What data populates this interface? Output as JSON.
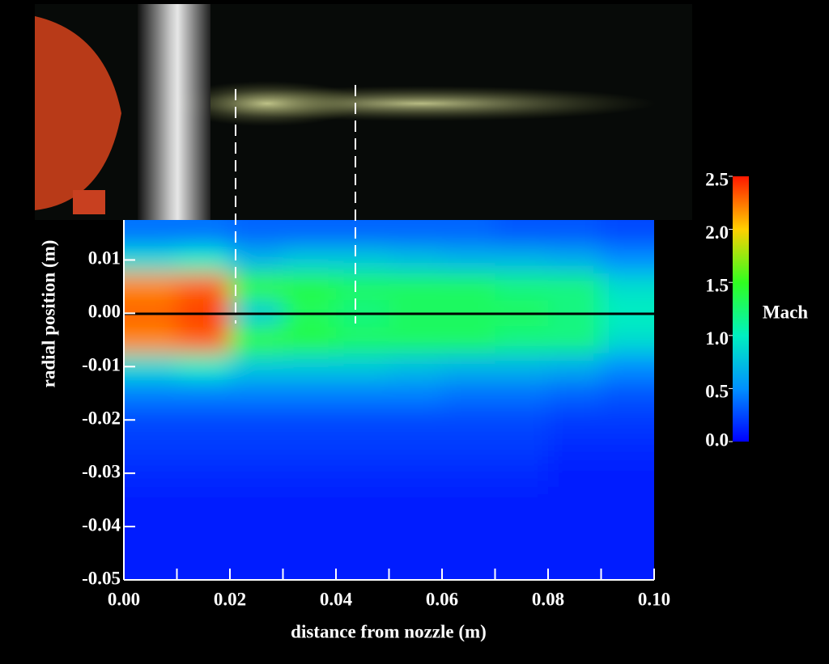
{
  "chart_data": {
    "type": "heatmap",
    "xlabel": "distance from nozzle (m)",
    "ylabel": "radial position (m)",
    "colorbar_label": "Mach",
    "x": [
      0.005,
      0.015,
      0.025,
      0.035,
      0.045,
      0.055,
      0.065,
      0.075,
      0.085,
      0.095
    ],
    "y": [
      0.015,
      0.01,
      0.005,
      0,
      -0.005,
      -0.01,
      -0.015,
      -0.02,
      -0.025,
      -0.03,
      -0.035,
      -0.04,
      -0.045
    ],
    "z": [
      [
        0.4,
        0.4,
        0.35,
        0.35,
        0.35,
        0.35,
        0.35,
        0.3,
        0.3,
        0.25
      ],
      [
        0.9,
        1.0,
        0.7,
        0.8,
        0.8,
        0.75,
        0.7,
        0.7,
        0.65,
        0.5
      ],
      [
        2.2,
        2.3,
        1.5,
        1.4,
        1.3,
        1.3,
        1.3,
        1.2,
        1.2,
        0.9
      ],
      [
        2.3,
        2.4,
        0.8,
        1.3,
        1.2,
        1.3,
        1.3,
        1.3,
        1.2,
        1.0
      ],
      [
        2.2,
        2.3,
        1.5,
        1.4,
        1.3,
        1.3,
        1.3,
        1.2,
        1.2,
        0.9
      ],
      [
        0.9,
        1.0,
        0.8,
        0.8,
        0.8,
        0.75,
        0.7,
        0.7,
        0.65,
        0.5
      ],
      [
        0.45,
        0.45,
        0.45,
        0.45,
        0.45,
        0.45,
        0.4,
        0.4,
        0.35,
        0.3
      ],
      [
        0.25,
        0.25,
        0.25,
        0.25,
        0.25,
        0.25,
        0.25,
        0.25,
        0.2,
        0.2
      ],
      [
        0.2,
        0.2,
        0.2,
        0.2,
        0.2,
        0.2,
        0.2,
        0.2,
        0.15,
        0.15
      ],
      [
        0.15,
        0.15,
        0.15,
        0.15,
        0.15,
        0.15,
        0.15,
        0.15,
        0.1,
        0.1
      ],
      [
        0.1,
        0.1,
        0.1,
        0.1,
        0.1,
        0.1,
        0.1,
        0.1,
        0.1,
        0.1
      ],
      [
        0.1,
        0.1,
        0.1,
        0.1,
        0.1,
        0.1,
        0.1,
        0.1,
        0.1,
        0.1
      ],
      [
        0.1,
        0.1,
        0.1,
        0.1,
        0.1,
        0.1,
        0.1,
        0.1,
        0.1,
        0.1
      ]
    ],
    "xlim": [
      0,
      0.1
    ],
    "ylim": [
      -0.05,
      0.0175
    ],
    "xticks": [
      {
        "value": 0,
        "label": "0.00"
      },
      {
        "value": 0.02,
        "label": "0.02"
      },
      {
        "value": 0.04,
        "label": "0.04"
      },
      {
        "value": 0.06,
        "label": "0.06"
      },
      {
        "value": 0.08,
        "label": "0.08"
      },
      {
        "value": 0.1,
        "label": "0.10"
      }
    ],
    "xminor_ticks": [
      0.01,
      0.03,
      0.05,
      0.07,
      0.09
    ],
    "yticks": [
      0.01,
      {
        "value": 0,
        "label": "0.00"
      },
      -0.01,
      -0.02,
      -0.03,
      -0.04,
      -0.05
    ],
    "zlim": [
      0,
      2.5
    ],
    "zticks": [
      {
        "value": 0,
        "label": "0.0"
      },
      0.5,
      {
        "value": 1,
        "label": "1.0"
      },
      1.5,
      {
        "value": 2,
        "label": "2.0"
      },
      2.5
    ],
    "colorscale": [
      "#0000ff",
      "#0090ff",
      "#00f0c0",
      "#30ff20",
      "#ffd000",
      "#ff1800"
    ]
  }
}
